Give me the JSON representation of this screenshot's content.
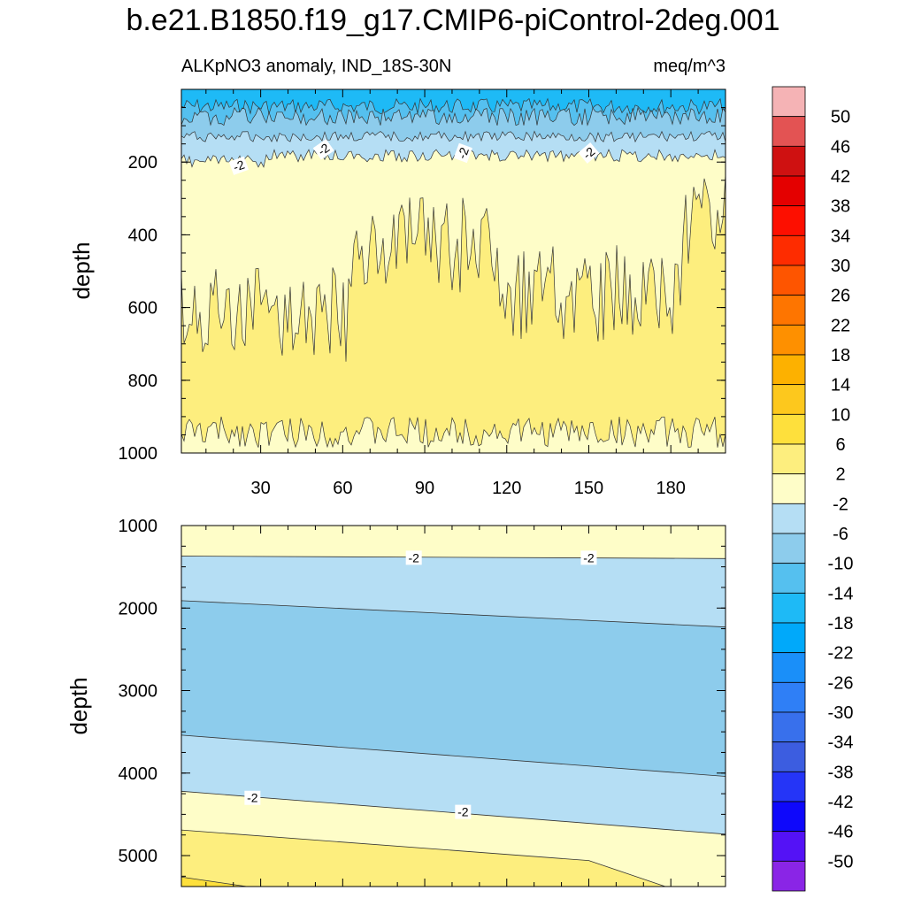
{
  "chart_data": {
    "type": "contour",
    "title": "b.e21.B1850.f19_g17.CMIP6-piControl-2deg.001",
    "subtitle_left": "ALKpNO3 anomaly, IND_18S-30N",
    "subtitle_right": "meq/m^3",
    "xlim": [
      1,
      200
    ],
    "x_ticks": [
      "30",
      "60",
      "90",
      "120",
      "150",
      "180"
    ],
    "contour_label": "-2",
    "panels": [
      {
        "name": "upper",
        "ylabel": "depth",
        "ylim": [
          0,
          1000
        ],
        "y_ticks": [
          "200",
          "400",
          "600",
          "800",
          "1000"
        ],
        "description": "Upper ocean 0-1000 m: negative anomalies (-6 to -18) near surface, -2..2 band down to ~200 m, 2..6 below"
      },
      {
        "name": "lower",
        "ylabel": "depth",
        "ylim": [
          1000,
          5375
        ],
        "y_ticks": [
          "1000",
          "2000",
          "3000",
          "4000",
          "5000"
        ],
        "description": "Deep ocean 1000-5375 m: -2..2 near 1000 m, -6..-2 band, -10..-6 core 2000-3700 m, returning to positive near bottom"
      }
    ],
    "colorbar": {
      "labels": [
        "50",
        "46",
        "42",
        "38",
        "34",
        "30",
        "26",
        "22",
        "18",
        "14",
        "10",
        "6",
        "2",
        "-2",
        "-6",
        "-10",
        "-14",
        "-18",
        "-22",
        "-26",
        "-30",
        "-34",
        "-38",
        "-42",
        "-46",
        "-50"
      ],
      "colors": [
        "#f5b3b5",
        "#e35353",
        "#cf1111",
        "#e40000",
        "#fd0f00",
        "#fe2c00",
        "#fe5500",
        "#fe7500",
        "#fe9000",
        "#fdb100",
        "#fdc81d",
        "#fee03c",
        "#fdee7e",
        "#fefdc8",
        "#b5def4",
        "#8dccec",
        "#55c0ef",
        "#1ebaf6",
        "#00a9fa",
        "#1a8ff9",
        "#2f7ff6",
        "#3870ec",
        "#3c5de0",
        "#2535f7",
        "#0e08fb",
        "#5412f6",
        "#8a25e6"
      ]
    }
  }
}
